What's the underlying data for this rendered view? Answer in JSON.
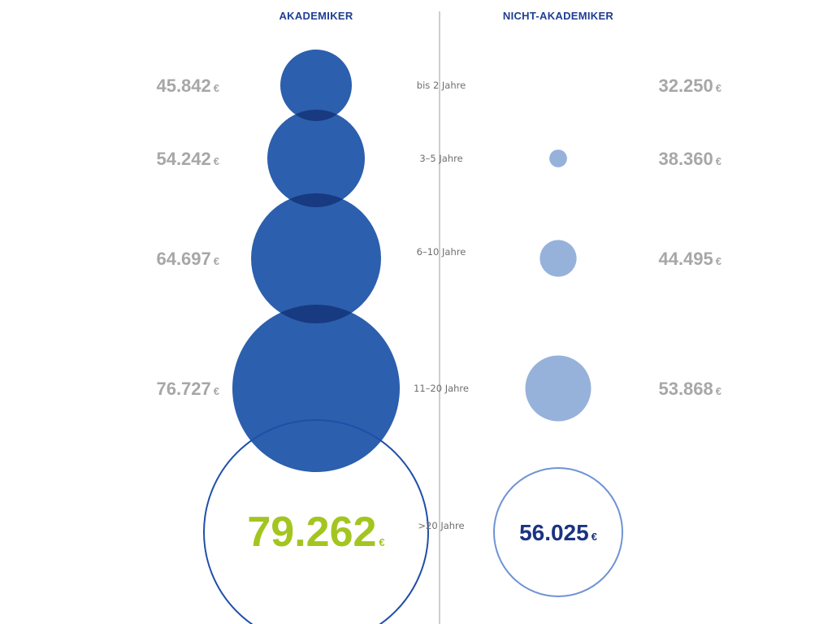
{
  "colors": {
    "akademiker_fill": "#2c5fad",
    "akademiker_overlap": "#173a80",
    "nicht_akademiker_fill": "#7d9fd1",
    "outline_dark": "#1f4fa8",
    "outline_light": "#6f93d3",
    "heading": "#1f3e93",
    "value_gray": "#a7a7a7",
    "highlight_green": "#a3c520",
    "highlight_navy": "#1b3283",
    "divider": "#bdbdbd"
  },
  "headings": {
    "left": "AKADEMIKER",
    "right": "NICHT-AKADEMIKER"
  },
  "currency": "€",
  "chart_data": {
    "type": "bubble",
    "categories": [
      "bis 2 Jahre",
      "3–5 Jahre",
      "6–10 Jahre",
      "11–20 Jahre",
      ">20 Jahre"
    ],
    "series": [
      {
        "name": "AKADEMIKER",
        "values": [
          45842,
          54242,
          64697,
          76727,
          79262
        ],
        "labels": [
          "45.842",
          "54.242",
          "64.697",
          "76.727",
          "79.262"
        ]
      },
      {
        "name": "NICHT-AKADEMIKER",
        "values": [
          32250,
          38360,
          44495,
          53868,
          56025
        ],
        "labels": [
          "32.250",
          "38.360",
          "44.495",
          "53.868",
          "56.025"
        ]
      }
    ]
  }
}
